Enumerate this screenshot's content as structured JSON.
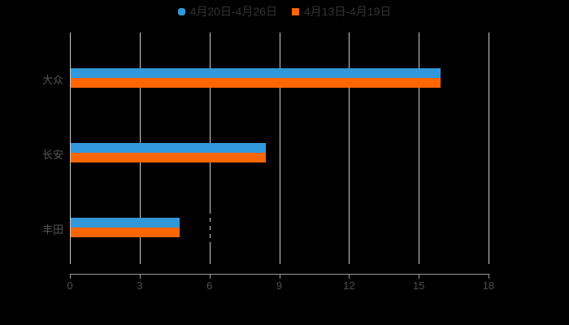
{
  "chart_data": {
    "type": "bar",
    "orientation": "horizontal",
    "title": "",
    "xlabel": "",
    "ylabel": "",
    "categories": [
      "大众",
      "长安",
      "丰田"
    ],
    "series": [
      {
        "name": "4月20日-4月26日",
        "color": "#3398db",
        "marker": "round",
        "values": [
          15.9,
          8.4,
          4.7
        ]
      },
      {
        "name": "4月13日-4月19日",
        "color": "#ff6600",
        "marker": "square",
        "values": [
          15.9,
          8.4,
          4.7
        ]
      }
    ],
    "x_ticks": [
      "0",
      "3",
      "6",
      "9",
      "12",
      "15",
      "18"
    ],
    "x_tick_values": [
      0,
      3,
      6,
      9,
      12,
      15,
      18
    ],
    "xlim": [
      0,
      18
    ],
    "grid": true,
    "legend_position": "top",
    "background": "#000000",
    "colors": {
      "gridline": "#cccccc",
      "axis_line": "#999999",
      "tick_label": "#4d4d4d",
      "category_label": "#555555",
      "legend_text": "#333333"
    }
  }
}
